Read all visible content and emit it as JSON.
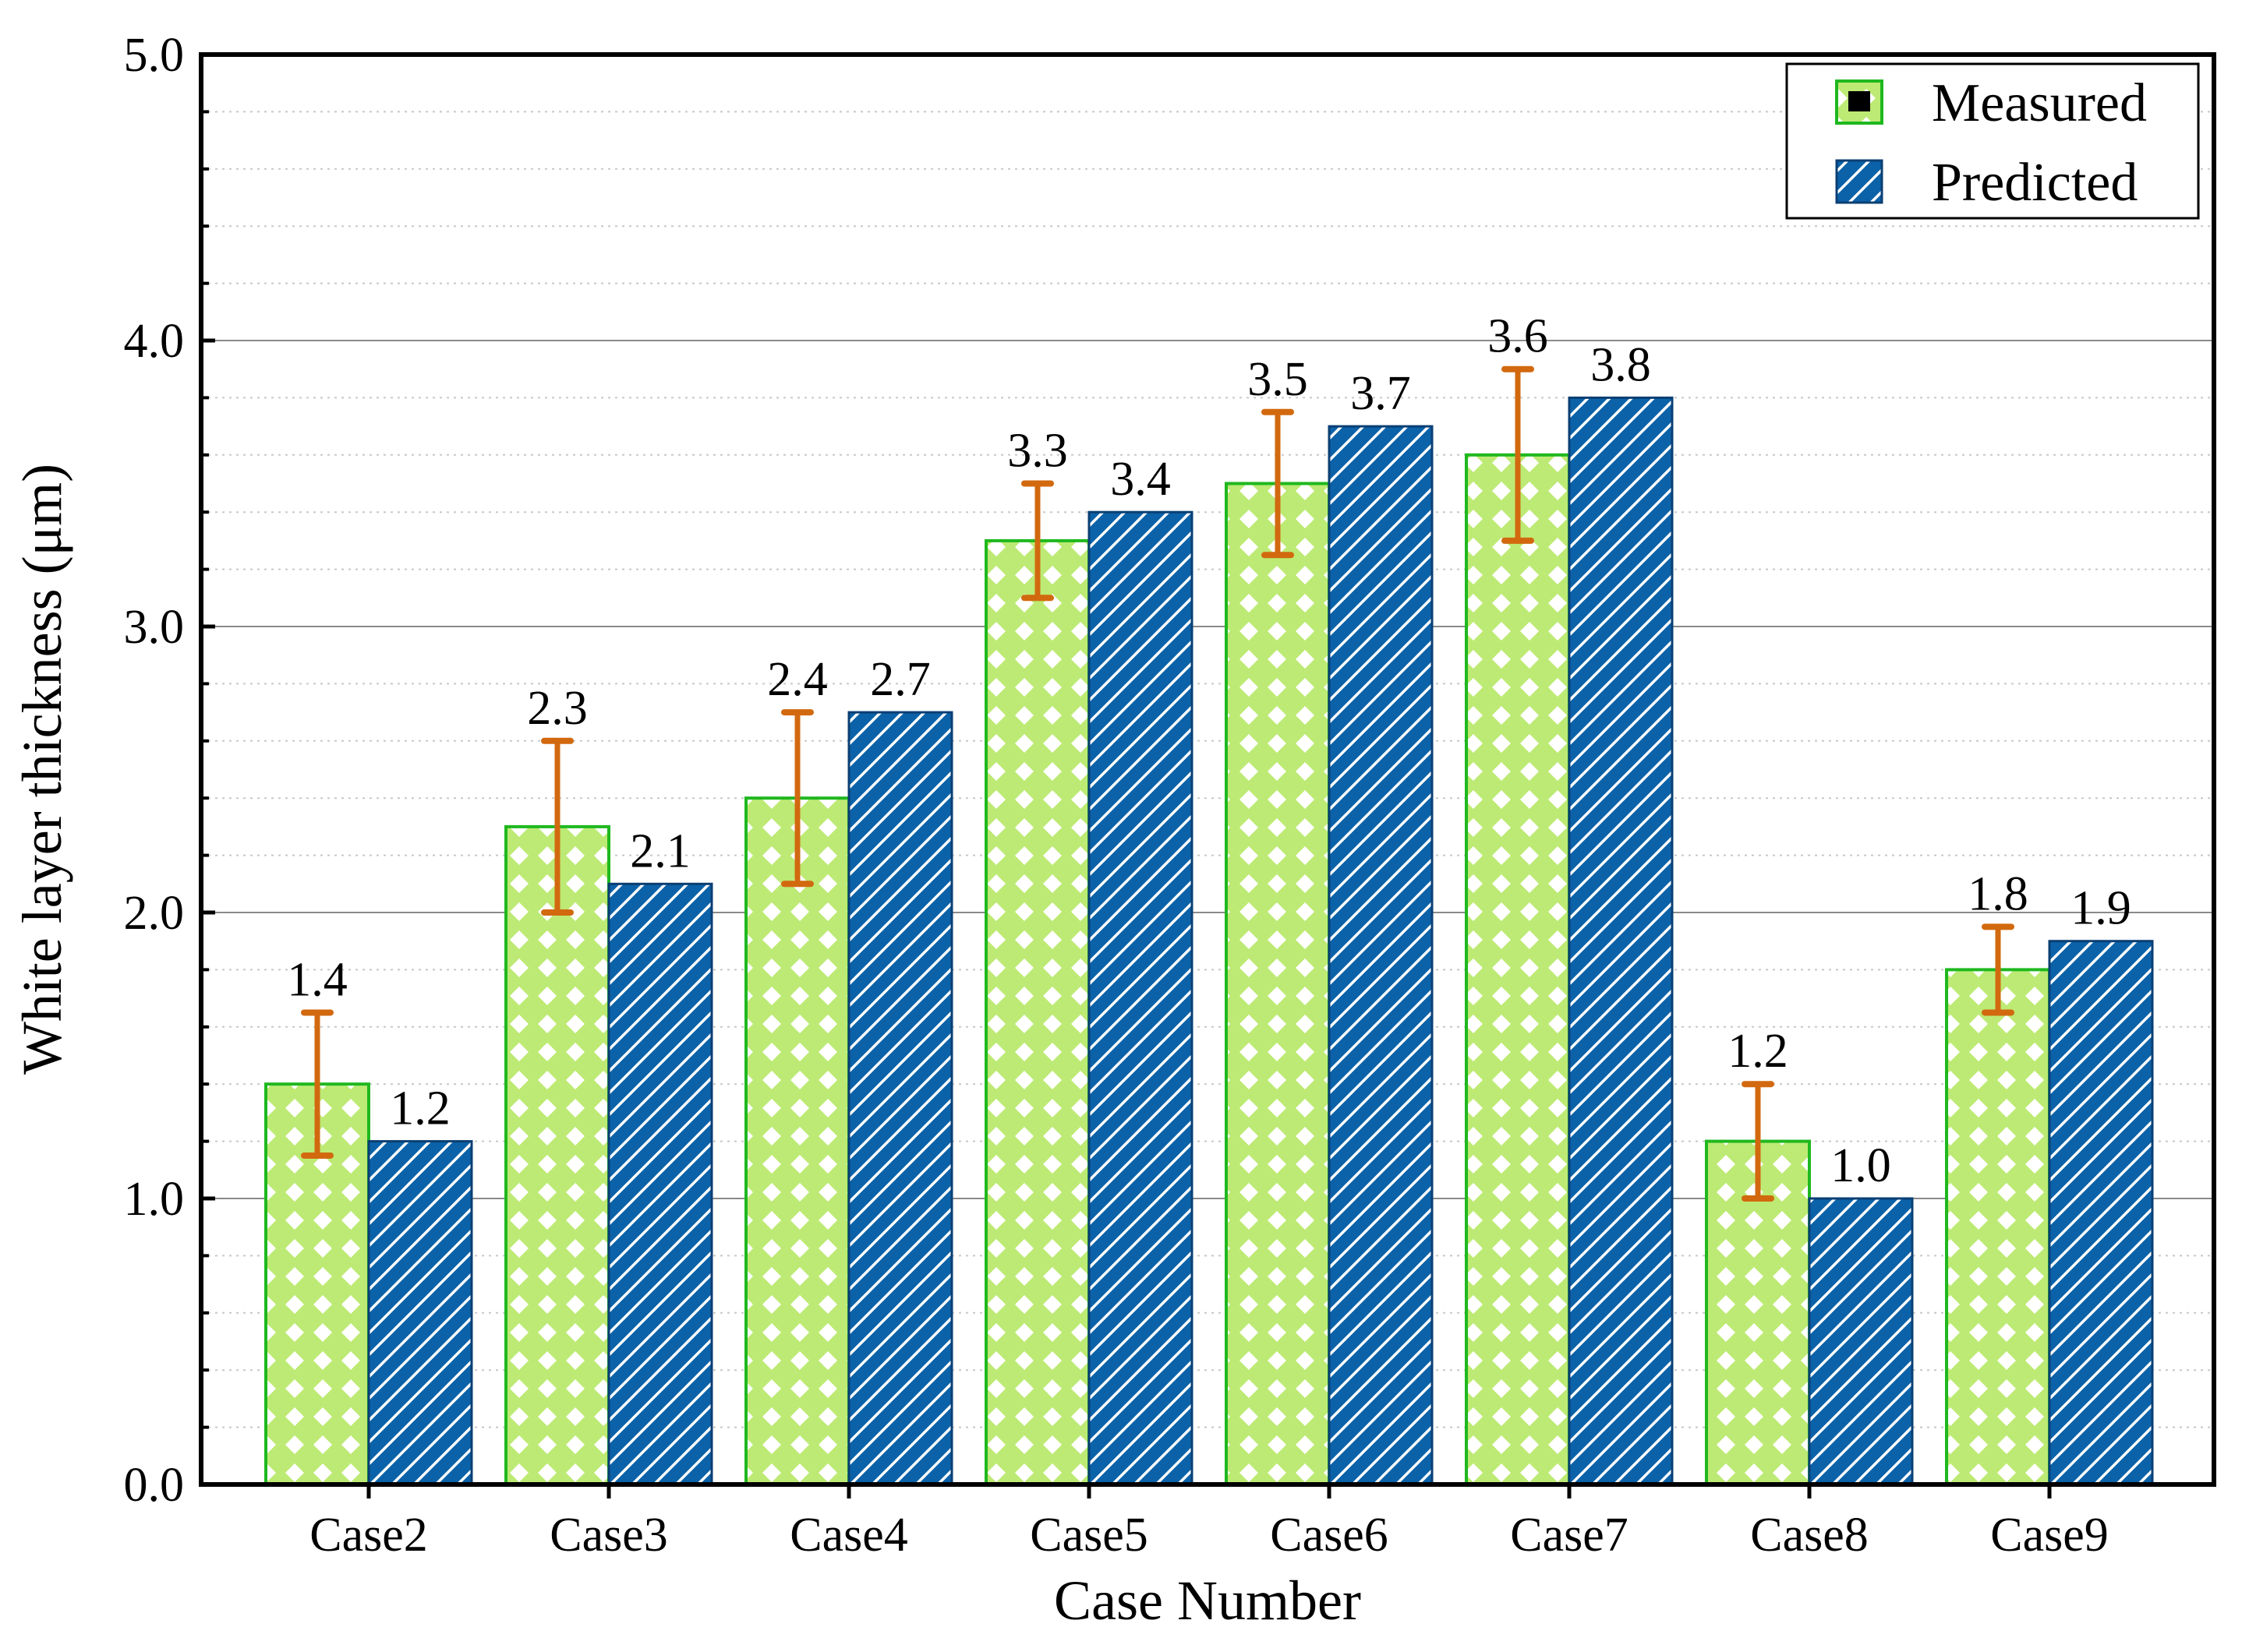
{
  "chart_data": {
    "type": "bar",
    "title": "",
    "xlabel": "Case Number",
    "ylabel": "White layer thickness (μm)",
    "ylim": [
      0,
      5
    ],
    "yticks": [
      "0.0",
      "1.0",
      "2.0",
      "3.0",
      "4.0",
      "5.0"
    ],
    "grid": true,
    "legend_position": "top-right",
    "categories": [
      "Case2",
      "Case3",
      "Case4",
      "Case5",
      "Case6",
      "Case7",
      "Case8",
      "Case9"
    ],
    "series": [
      {
        "name": "Measured",
        "values": [
          1.4,
          2.3,
          2.4,
          3.3,
          3.5,
          3.6,
          1.2,
          1.8
        ],
        "labels": [
          "1.4",
          "2.3",
          "2.4",
          "3.3",
          "3.5",
          "3.6",
          "1.2",
          "1.8"
        ],
        "error_low": [
          1.15,
          2.0,
          2.1,
          3.1,
          3.25,
          3.3,
          1.0,
          1.65
        ],
        "error_high": [
          1.65,
          2.6,
          2.7,
          3.5,
          3.75,
          3.9,
          1.4,
          1.95
        ],
        "fill_color": "#bdea74",
        "edge_color": "#1fb81f",
        "pattern": "diamond-checker"
      },
      {
        "name": "Predicted",
        "values": [
          1.2,
          2.1,
          2.7,
          3.4,
          3.7,
          3.8,
          1.0,
          1.9
        ],
        "labels": [
          "1.2",
          "2.1",
          "2.7",
          "3.4",
          "3.7",
          "3.8",
          "1.0",
          "1.9"
        ],
        "fill_color": "#0b62a8",
        "edge_color": "#0b3f73",
        "pattern": "diagonal-hatch"
      }
    ],
    "error_bar_color": "#d2690f"
  }
}
